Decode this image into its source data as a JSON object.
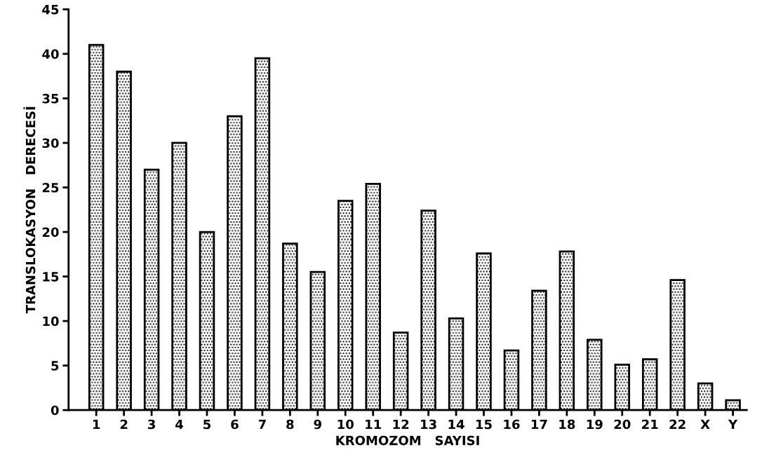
{
  "chart_data": {
    "type": "bar",
    "xlabel": "KROMOZOM   SAYISI",
    "ylabel": "TRANSLOKASYON   DERECESİ",
    "categories": [
      "1",
      "2",
      "3",
      "4",
      "5",
      "6",
      "7",
      "8",
      "9",
      "10",
      "11",
      "12",
      "13",
      "14",
      "15",
      "16",
      "17",
      "18",
      "19",
      "20",
      "21",
      "22",
      "X",
      "Y"
    ],
    "values": [
      41,
      38,
      27,
      30,
      20,
      33,
      39.5,
      18.7,
      15.5,
      23.5,
      25.4,
      8.7,
      22.4,
      10.3,
      17.6,
      6.7,
      13.4,
      17.8,
      7.9,
      5.1,
      5.7,
      14.6,
      3.0,
      1.1
    ],
    "color": "#000000",
    "ylim": [
      0,
      45
    ],
    "yticks": [
      0,
      5,
      10,
      15,
      20,
      25,
      30,
      35,
      40,
      45
    ],
    "grid": false
  }
}
